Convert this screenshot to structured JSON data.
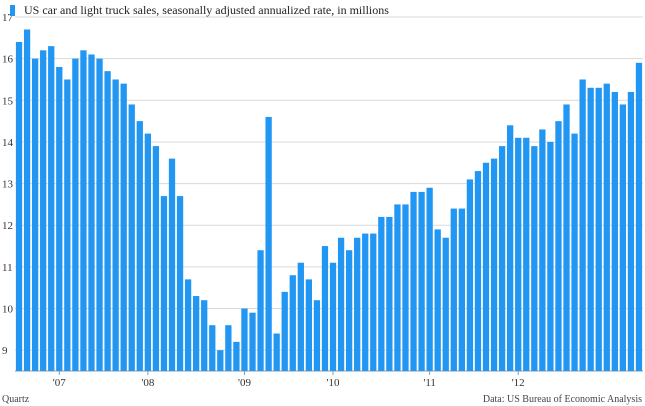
{
  "chart_data": {
    "type": "bar",
    "title": "US car and light truck sales, seasonally adjusted annualized rate, in millions",
    "legend_placement": "top-left",
    "color": "#2196f3",
    "ylim": [
      8.5,
      17
    ],
    "y_ticks": [
      9,
      10,
      11,
      12,
      13,
      14,
      15,
      16,
      17
    ],
    "x_tick_labels": [
      {
        "label": "'07",
        "index": 5
      },
      {
        "label": "'08",
        "index": 16
      },
      {
        "label": "'09",
        "index": 28
      },
      {
        "label": "'10",
        "index": 39
      },
      {
        "label": "'11",
        "index": 51
      },
      {
        "label": "'12",
        "index": 62
      }
    ],
    "grid": true,
    "values": [
      16.4,
      16.7,
      16.0,
      16.2,
      16.3,
      15.8,
      15.5,
      16.0,
      16.2,
      16.1,
      16.0,
      15.7,
      15.5,
      15.4,
      14.9,
      14.5,
      14.2,
      13.9,
      12.7,
      13.6,
      12.7,
      10.7,
      10.3,
      10.2,
      9.6,
      9.0,
      9.6,
      9.2,
      10.0,
      9.9,
      11.4,
      14.6,
      9.4,
      10.4,
      10.8,
      11.1,
      10.7,
      10.2,
      11.5,
      11.1,
      11.7,
      11.4,
      11.7,
      11.8,
      11.8,
      12.2,
      12.2,
      12.5,
      12.5,
      12.8,
      12.8,
      12.9,
      11.9,
      11.7,
      12.4,
      12.4,
      13.1,
      13.3,
      13.5,
      13.6,
      13.9,
      14.4,
      14.1,
      14.1,
      13.9,
      14.3,
      14.0,
      14.5,
      14.9,
      14.2,
      15.5,
      15.3,
      15.3,
      15.4,
      15.2,
      14.9,
      15.2,
      15.9
    ]
  },
  "footer": {
    "left": "Quartz",
    "right": "Data: US Bureau of Economic Analysis"
  }
}
